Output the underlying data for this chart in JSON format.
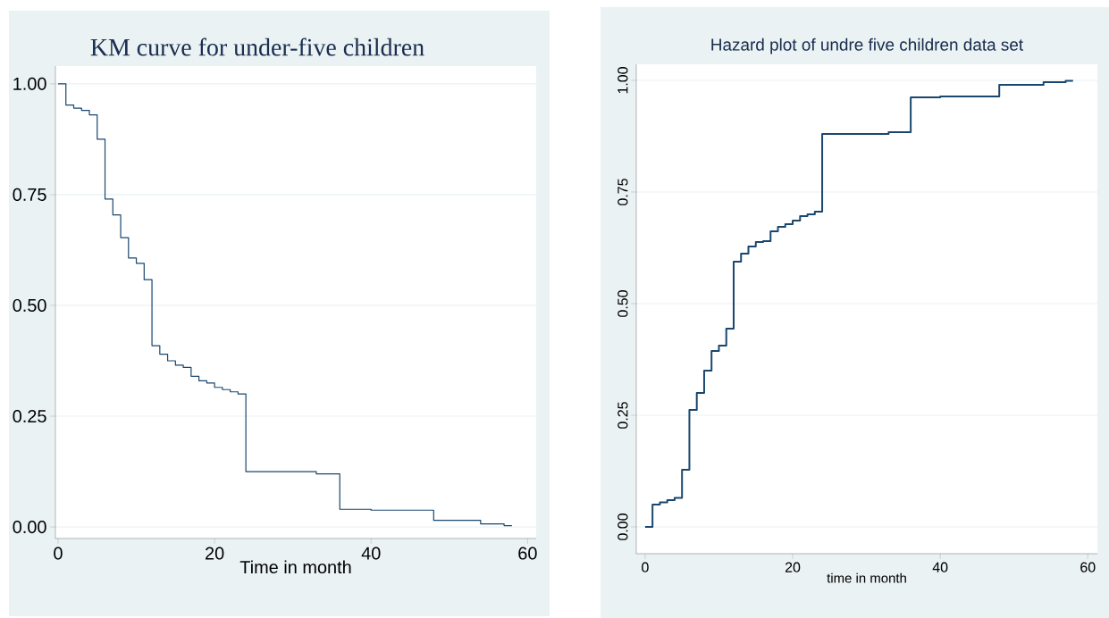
{
  "chart_data": [
    {
      "type": "step",
      "title": "KM curve for under-five children",
      "xlabel": "Time in month",
      "x": [
        0,
        1,
        2,
        3,
        4,
        5,
        6,
        7,
        8,
        9,
        10,
        11,
        12,
        13,
        14,
        15,
        16,
        17,
        18,
        19,
        20,
        21,
        22,
        23,
        24,
        33,
        36,
        40,
        48,
        54,
        57,
        58
      ],
      "series": [
        {
          "color": "#1a476f",
          "values": [
            1,
            0.952,
            0.945,
            0.94,
            0.93,
            0.875,
            0.74,
            0.704,
            0.653,
            0.607,
            0.595,
            0.558,
            0.409,
            0.39,
            0.375,
            0.365,
            0.36,
            0.34,
            0.33,
            0.325,
            0.315,
            0.31,
            0.305,
            0.3,
            0.125,
            0.12,
            0.04,
            0.038,
            0.015,
            0.007,
            0.003,
            0.003
          ]
        }
      ],
      "xlim": [
        -0.34,
        61.1
      ],
      "ylim": [
        -0.026,
        1.04
      ],
      "xticks": [
        0,
        20,
        40,
        60
      ],
      "yticks": [
        {
          "value": 0,
          "label": "0.00"
        },
        {
          "value": 0.25,
          "label": "0.25"
        },
        {
          "value": 0.5,
          "label": "0.50"
        },
        {
          "value": 0.75,
          "label": "0.75"
        },
        {
          "value": 1,
          "label": "1.00"
        }
      ],
      "grid": "y"
    },
    {
      "type": "step",
      "title": "Hazard plot of undre five children data set",
      "xlabel": "time in month",
      "x": [
        0,
        1,
        2,
        3,
        4,
        5,
        6,
        7,
        8,
        9,
        10,
        11,
        12,
        13,
        14,
        15,
        16,
        17,
        18,
        19,
        20,
        21,
        22,
        23,
        24,
        33,
        36,
        40,
        48,
        54,
        57,
        58
      ],
      "series": [
        {
          "color": "#1a476f",
          "values": [
            0,
            0.05,
            0.055,
            0.06,
            0.065,
            0.128,
            0.262,
            0.3,
            0.35,
            0.394,
            0.406,
            0.444,
            0.594,
            0.612,
            0.628,
            0.638,
            0.64,
            0.662,
            0.672,
            0.678,
            0.686,
            0.696,
            0.7,
            0.706,
            0.88,
            0.884,
            0.962,
            0.964,
            0.99,
            0.996,
            0.999,
            0.999
          ]
        }
      ],
      "xlim": [
        -1.2,
        61.3
      ],
      "ylim": [
        -0.06,
        1.036
      ],
      "xticks": [
        0,
        20,
        40,
        60
      ],
      "yticks": [
        {
          "value": 0,
          "label": "0.00"
        },
        {
          "value": 0.25,
          "label": "0.25"
        },
        {
          "value": 0.5,
          "label": "0.50"
        },
        {
          "value": 0.75,
          "label": "0.75"
        },
        {
          "value": 1,
          "label": "1.00"
        }
      ],
      "grid": "y"
    }
  ]
}
